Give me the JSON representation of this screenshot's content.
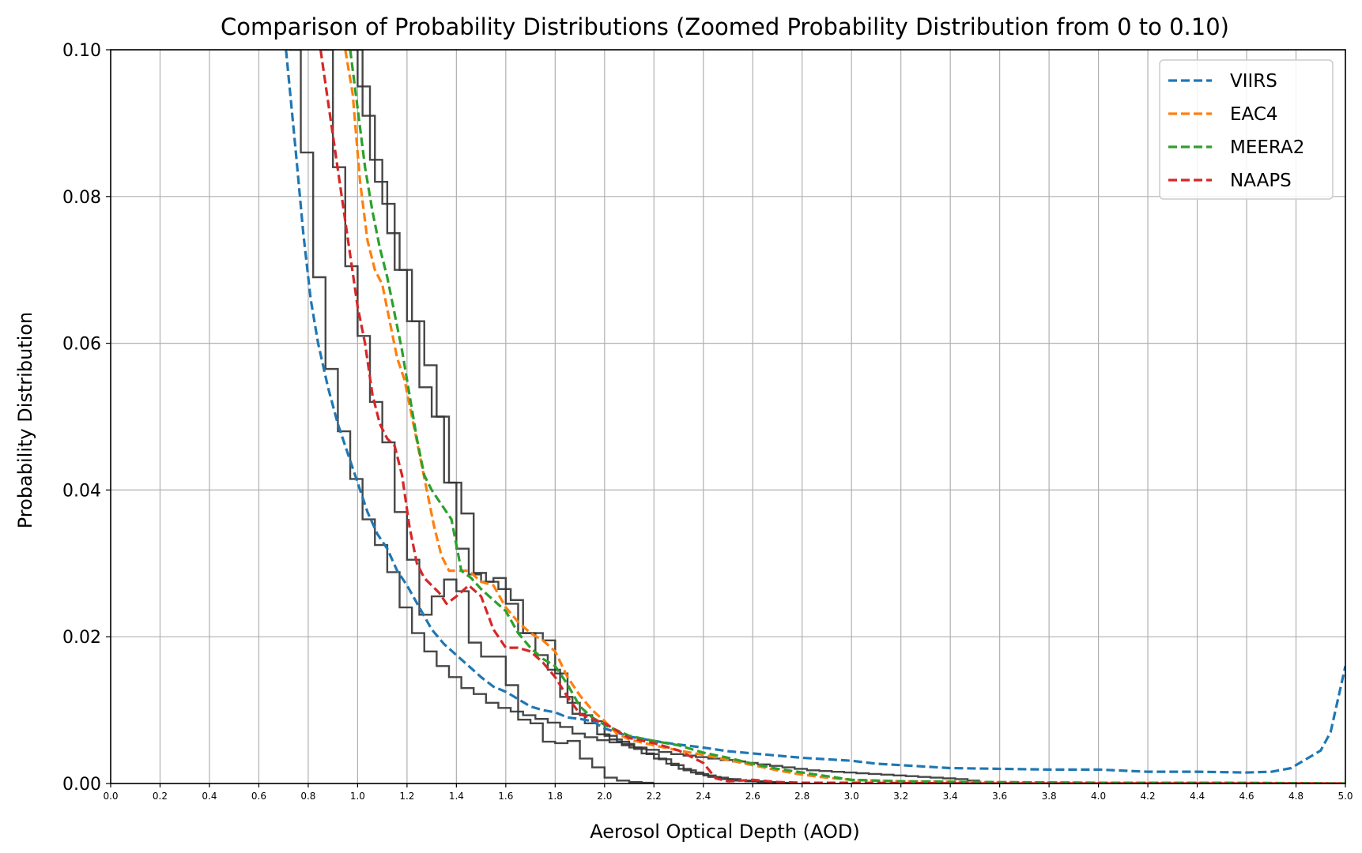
{
  "chart_data": {
    "type": "line",
    "title": "Comparison of Probability Distributions (Zoomed Probability Distribution from 0 to 0.10)",
    "xlabel": "Aerosol Optical Depth (AOD)",
    "ylabel": "Probability Distribution",
    "xlim": [
      0,
      5
    ],
    "ylim": [
      0,
      0.1
    ],
    "grid": true,
    "legend_position": "top-right",
    "xticks": [
      "0.0",
      "0.2",
      "0.4",
      "0.6",
      "0.8",
      "1.0",
      "1.2",
      "1.4",
      "1.6",
      "1.8",
      "2.0",
      "2.2",
      "2.4",
      "2.6",
      "2.8",
      "3.0",
      "3.2",
      "3.4",
      "3.6",
      "3.8",
      "4.0",
      "4.2",
      "4.4",
      "4.6",
      "4.8",
      "5.0"
    ],
    "yticks": [
      "0.00",
      "0.02",
      "0.04",
      "0.06",
      "0.08",
      "0.10"
    ],
    "series": [
      {
        "name": "VIIRS",
        "color": "#1f77b4",
        "style": "dashed",
        "x": [
          0.71,
          0.75,
          0.78,
          0.81,
          0.84,
          0.88,
          0.92,
          0.96,
          1.0,
          1.04,
          1.08,
          1.12,
          1.16,
          1.2,
          1.25,
          1.3,
          1.35,
          1.4,
          1.45,
          1.5,
          1.55,
          1.6,
          1.65,
          1.7,
          1.75,
          1.8,
          1.85,
          1.9,
          1.95,
          2.0,
          2.1,
          2.2,
          2.3,
          2.4,
          2.5,
          2.6,
          2.7,
          2.8,
          2.9,
          3.0,
          3.1,
          3.2,
          3.4,
          3.6,
          3.8,
          4.0,
          4.2,
          4.4,
          4.6,
          4.7,
          4.78,
          4.84,
          4.9,
          4.94,
          5.0
        ],
        "y": [
          0.1,
          0.086,
          0.075,
          0.066,
          0.06,
          0.054,
          0.049,
          0.045,
          0.041,
          0.037,
          0.034,
          0.032,
          0.029,
          0.027,
          0.024,
          0.021,
          0.019,
          0.0175,
          0.016,
          0.0145,
          0.0132,
          0.0125,
          0.0115,
          0.0105,
          0.01,
          0.0097,
          0.009,
          0.0088,
          0.0085,
          0.0075,
          0.0064,
          0.0058,
          0.0053,
          0.0049,
          0.0044,
          0.0041,
          0.0038,
          0.0035,
          0.0033,
          0.0031,
          0.0027,
          0.0025,
          0.0021,
          0.002,
          0.0019,
          0.0019,
          0.0016,
          0.0016,
          0.0015,
          0.0016,
          0.0021,
          0.0033,
          0.0045,
          0.007,
          0.016
        ]
      },
      {
        "name": "EAC4",
        "color": "#ff7f0e",
        "style": "dashed",
        "x": [
          0.95,
          0.98,
          1.01,
          1.04,
          1.07,
          1.1,
          1.13,
          1.16,
          1.19,
          1.22,
          1.25,
          1.28,
          1.31,
          1.34,
          1.37,
          1.4,
          1.45,
          1.5,
          1.55,
          1.6,
          1.65,
          1.7,
          1.75,
          1.8,
          1.85,
          1.9,
          1.95,
          2.0,
          2.05,
          2.1,
          2.2,
          2.3,
          2.4,
          2.5,
          2.6,
          2.7,
          2.8,
          2.9,
          3.0,
          3.2,
          3.5,
          4.0,
          4.5,
          5.0
        ],
        "y": [
          0.1,
          0.094,
          0.082,
          0.074,
          0.07,
          0.068,
          0.063,
          0.058,
          0.055,
          0.05,
          0.045,
          0.04,
          0.035,
          0.031,
          0.029,
          0.029,
          0.029,
          0.0275,
          0.027,
          0.024,
          0.022,
          0.0205,
          0.0195,
          0.018,
          0.0145,
          0.012,
          0.01,
          0.0085,
          0.0068,
          0.006,
          0.0052,
          0.0045,
          0.0039,
          0.0032,
          0.0025,
          0.0018,
          0.0012,
          0.0008,
          0.0005,
          0.0003,
          0.0002,
          0.0001,
          0.0001,
          0
        ]
      },
      {
        "name": "MEERA2",
        "color": "#2ca02c",
        "style": "dashed",
        "x": [
          0.97,
          1.0,
          1.03,
          1.06,
          1.09,
          1.12,
          1.15,
          1.18,
          1.21,
          1.24,
          1.27,
          1.3,
          1.34,
          1.38,
          1.42,
          1.46,
          1.5,
          1.55,
          1.6,
          1.65,
          1.7,
          1.75,
          1.8,
          1.85,
          1.9,
          1.95,
          2.0,
          2.1,
          2.2,
          2.3,
          2.4,
          2.5,
          2.6,
          2.7,
          2.8,
          2.9,
          3.0,
          3.2,
          3.5,
          4.0,
          4.5,
          5.0
        ],
        "y": [
          0.1,
          0.092,
          0.084,
          0.078,
          0.073,
          0.069,
          0.064,
          0.059,
          0.053,
          0.047,
          0.042,
          0.04,
          0.038,
          0.036,
          0.029,
          0.028,
          0.0265,
          0.025,
          0.0235,
          0.0205,
          0.0185,
          0.017,
          0.016,
          0.0135,
          0.0105,
          0.009,
          0.008,
          0.0065,
          0.0058,
          0.0052,
          0.0042,
          0.0035,
          0.0027,
          0.002,
          0.0015,
          0.001,
          0.0005,
          0.0003,
          0.0002,
          0.0001,
          0.0001,
          0
        ]
      },
      {
        "name": "NAAPS",
        "color": "#d62728",
        "style": "dashed",
        "x": [
          0.85,
          0.88,
          0.91,
          0.94,
          0.97,
          1.0,
          1.03,
          1.06,
          1.09,
          1.12,
          1.15,
          1.18,
          1.21,
          1.24,
          1.27,
          1.3,
          1.33,
          1.36,
          1.4,
          1.45,
          1.5,
          1.55,
          1.6,
          1.65,
          1.7,
          1.75,
          1.8,
          1.85,
          1.9,
          1.95,
          2.0,
          2.1,
          2.2,
          2.3,
          2.4,
          2.45,
          2.5,
          2.6,
          2.7,
          2.8,
          3.0,
          3.5,
          4.0,
          5.0
        ],
        "y": [
          0.1,
          0.093,
          0.086,
          0.079,
          0.072,
          0.065,
          0.06,
          0.053,
          0.049,
          0.047,
          0.046,
          0.042,
          0.035,
          0.03,
          0.028,
          0.027,
          0.026,
          0.0245,
          0.0255,
          0.027,
          0.0255,
          0.021,
          0.0185,
          0.0185,
          0.018,
          0.0165,
          0.0145,
          0.0118,
          0.0095,
          0.0088,
          0.0082,
          0.0062,
          0.0055,
          0.0045,
          0.0028,
          0.0007,
          0.0003,
          0.0005,
          0.0002,
          0.0001,
          0.0001,
          0,
          0,
          0
        ]
      }
    ],
    "step_histograms": [
      {
        "name": "",
        "color": "#333333",
        "bin_width": 0.05,
        "x_start": 0.72,
        "heights": [
          0.1,
          0.086,
          0.069,
          0.0565,
          0.048,
          0.0415,
          0.036,
          0.0325,
          0.0288,
          0.024,
          0.0205,
          0.018,
          0.016,
          0.0145,
          0.013,
          0.0122,
          0.011,
          0.0103,
          0.0098,
          0.0093,
          0.0088,
          0.0083,
          0.0077,
          0.0068,
          0.0063,
          0.0059,
          0.0056,
          0.0052,
          0.0049,
          0.0046,
          0.0043,
          0.004,
          0.0038,
          0.0036,
          0.0034,
          0.0032,
          0.003,
          0.0028,
          0.0026,
          0.0024,
          0.0022,
          0.002,
          0.0018,
          0.0017,
          0.0016,
          0.0015,
          0.0014,
          0.0013,
          0.0012,
          0.0011,
          0.001,
          0.0009,
          0.0008,
          0.0007,
          0.0006,
          0.0004
        ]
      },
      {
        "name": "",
        "color": "#333333",
        "bin_width": 0.05,
        "x_start": 0.95,
        "heights": [
          0.1,
          0.095,
          0.085,
          0.079,
          0.07,
          0.063,
          0.054,
          0.05,
          0.041,
          0.032,
          0.0285,
          0.0275,
          0.028,
          0.0245,
          0.0205,
          0.0205,
          0.0195,
          0.015,
          0.011,
          0.0093,
          0.0085,
          0.0065,
          0.0057,
          0.0049,
          0.0041,
          0.0034,
          0.0027,
          0.002,
          0.0015,
          0.0011,
          0.0008,
          0.0006,
          0.0004,
          0.0003,
          0.0002,
          0.0001
        ]
      },
      {
        "name": "",
        "color": "#333333",
        "bin_width": 0.05,
        "x_start": 0.97,
        "heights": [
          0.1,
          0.091,
          0.082,
          0.075,
          0.07,
          0.063,
          0.057,
          0.05,
          0.041,
          0.0368,
          0.0287,
          0.0275,
          0.0265,
          0.025,
          0.0205,
          0.0175,
          0.0155,
          0.0118,
          0.0095,
          0.0082,
          0.0067,
          0.006,
          0.0054,
          0.0047,
          0.004,
          0.0033,
          0.0025,
          0.0018,
          0.0013,
          0.0009,
          0.0006,
          0.0004,
          0.0003,
          0.0002,
          0.0001
        ]
      },
      {
        "name": "",
        "color": "#333333",
        "bin_width": 0.05,
        "x_start": 0.85,
        "heights": [
          0.1,
          0.084,
          0.0705,
          0.061,
          0.052,
          0.0465,
          0.037,
          0.0305,
          0.023,
          0.0255,
          0.0278,
          0.0262,
          0.0192,
          0.0173,
          0.0173,
          0.0134,
          0.0087,
          0.0082,
          0.0057,
          0.0055,
          0.0058,
          0.0034,
          0.0022,
          0.0008,
          0.0004,
          0.0002,
          0.0001
        ]
      }
    ]
  }
}
